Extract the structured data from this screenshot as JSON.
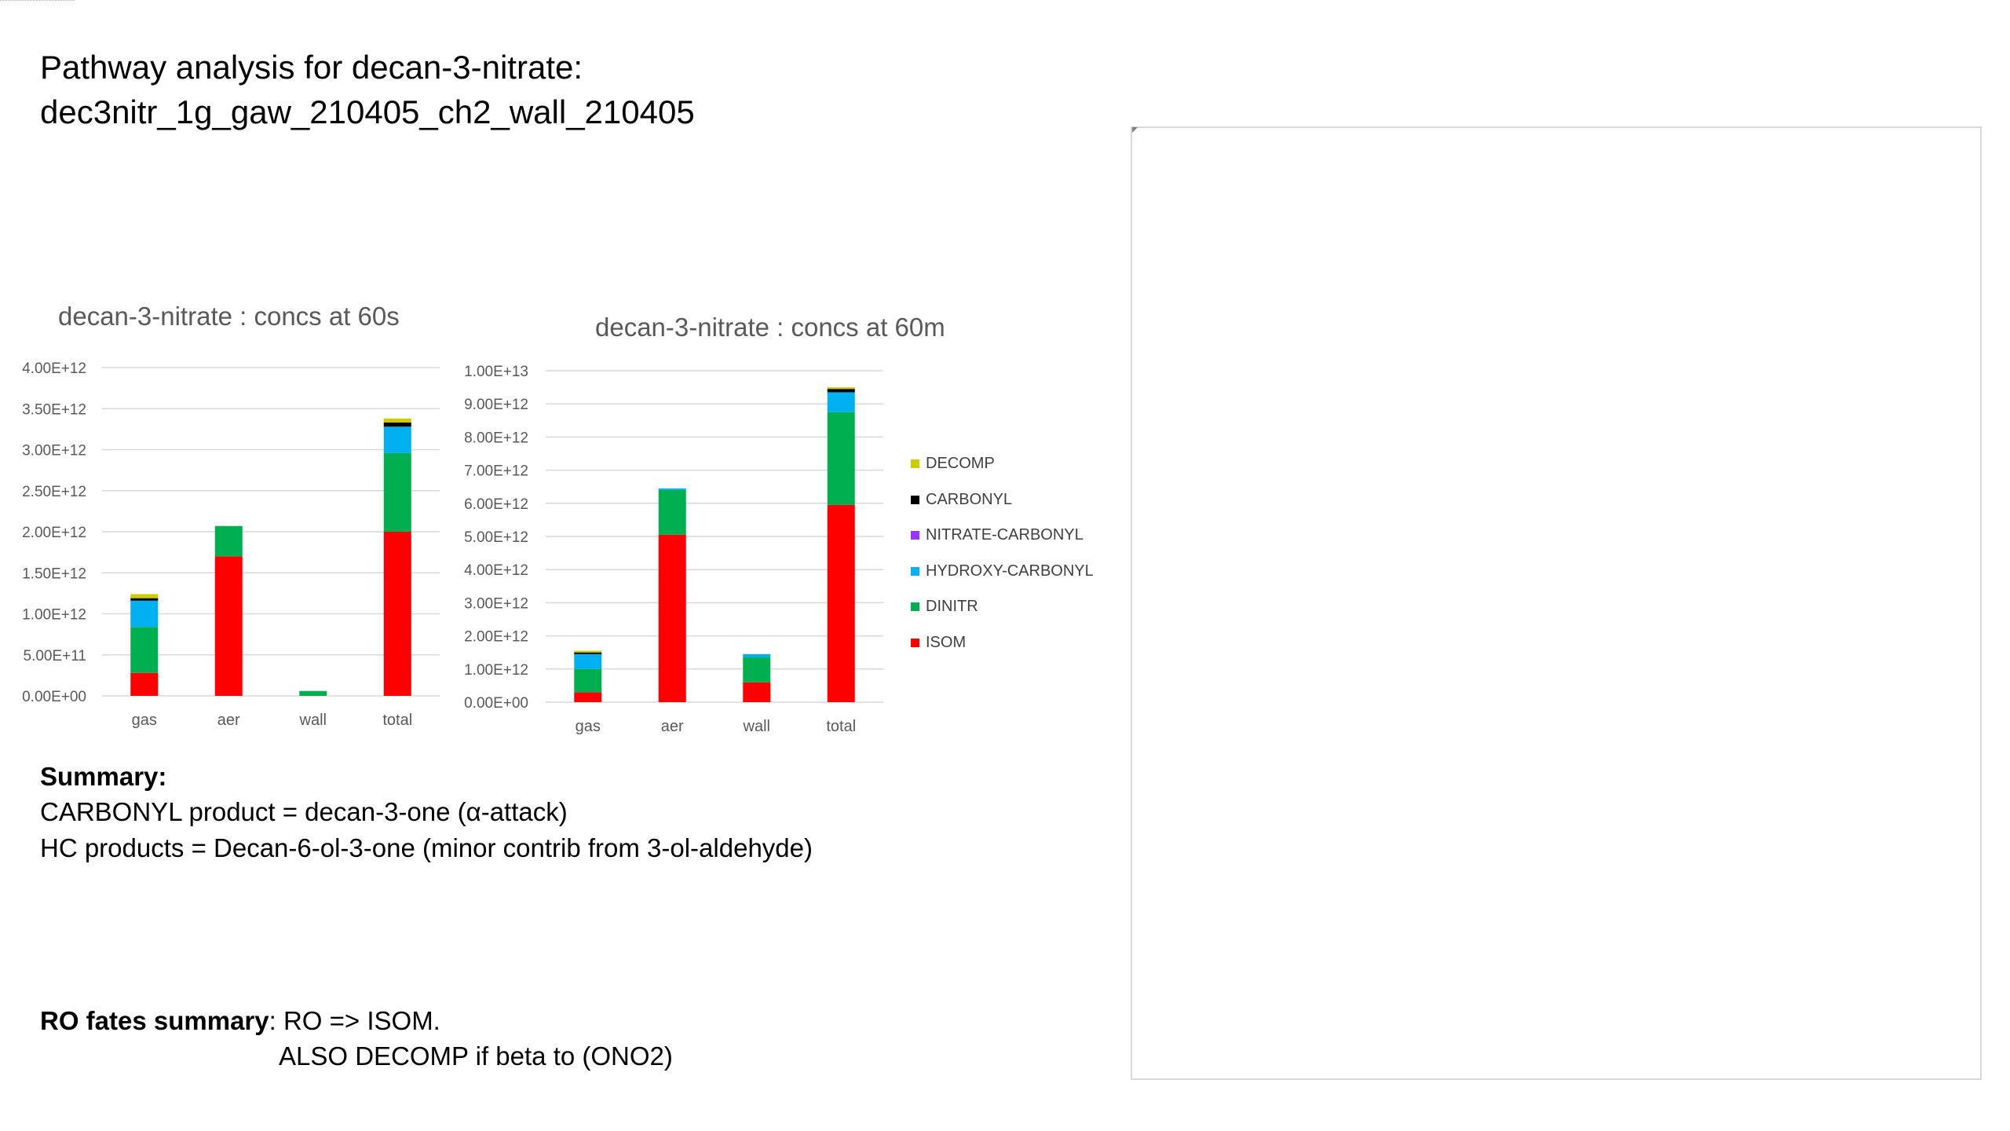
{
  "header": {
    "title_line1": "Pathway analysis for decan-3-nitrate:",
    "title_line2": "dec3nitr_1g_gaw_210405_ch2_wall_210405"
  },
  "chart_data": [
    {
      "type": "bar",
      "stacked": true,
      "title": "decan-3-nitrate : concs at 60s",
      "categories": [
        "gas",
        "aer",
        "wall",
        "total"
      ],
      "y_ticks": [
        "0.00E+00",
        "5.00E+11",
        "1.00E+12",
        "1.50E+12",
        "2.00E+12",
        "2.50E+12",
        "3.00E+12",
        "3.50E+12",
        "4.00E+12"
      ],
      "ylim": [
        0,
        4000000000000.0
      ],
      "grid": true,
      "series": [
        {
          "name": "ISOM",
          "color": "#ff0000",
          "values": [
            280000000000.0,
            1700000000000.0,
            0,
            2000000000000.0
          ]
        },
        {
          "name": "DINITR",
          "color": "#00b050",
          "values": [
            560000000000.0,
            370000000000.0,
            60000000000.0,
            960000000000.0
          ]
        },
        {
          "name": "HYDROXY-CARBONYL",
          "color": "#00b0f0",
          "values": [
            320000000000.0,
            0,
            0,
            320000000000.0
          ]
        },
        {
          "name": "NITRATE-CARBONYL",
          "color": "#9933ff",
          "values": [
            0,
            0,
            0,
            0
          ]
        },
        {
          "name": "CARBONYL",
          "color": "#000000",
          "values": [
            30000000000.0,
            0,
            0,
            50000000000.0
          ]
        },
        {
          "name": "DECOMP",
          "color": "#cccc00",
          "values": [
            50000000000.0,
            0,
            0,
            50000000000.0
          ]
        }
      ]
    },
    {
      "type": "bar",
      "stacked": true,
      "title": "decan-3-nitrate : concs at 60m",
      "categories": [
        "gas",
        "aer",
        "wall",
        "total"
      ],
      "y_ticks": [
        "0.00E+00",
        "1.00E+12",
        "2.00E+12",
        "3.00E+12",
        "4.00E+12",
        "5.00E+12",
        "6.00E+12",
        "7.00E+12",
        "8.00E+12",
        "9.00E+12",
        "1.00E+13"
      ],
      "ylim": [
        0,
        10000000000000.0
      ],
      "grid": true,
      "legend_position": "right",
      "series": [
        {
          "name": "ISOM",
          "color": "#ff0000",
          "values": [
            300000000000.0,
            5050000000000.0,
            600000000000.0,
            5950000000000.0
          ]
        },
        {
          "name": "DINITR",
          "color": "#00b050",
          "values": [
            700000000000.0,
            1350000000000.0,
            750000000000.0,
            2800000000000.0
          ]
        },
        {
          "name": "HYDROXY-CARBONYL",
          "color": "#00b0f0",
          "values": [
            450000000000.0,
            50000000000.0,
            100000000000.0,
            600000000000.0
          ]
        },
        {
          "name": "NITRATE-CARBONYL",
          "color": "#9933ff",
          "values": [
            0,
            0,
            0,
            0
          ]
        },
        {
          "name": "CARBONYL",
          "color": "#000000",
          "values": [
            50000000000.0,
            0,
            0,
            100000000000.0
          ]
        },
        {
          "name": "DECOMP",
          "color": "#cccc00",
          "values": [
            50000000000.0,
            0,
            0,
            50000000000.0
          ]
        }
      ]
    }
  ],
  "legend": [
    {
      "label": "DECOMP",
      "color": "#cccc00"
    },
    {
      "label": "CARBONYL",
      "color": "#000000"
    },
    {
      "label": "NITRATE-CARBONYL",
      "color": "#9933ff"
    },
    {
      "label": "HYDROXY-CARBONYL",
      "color": "#00b0f0"
    },
    {
      "label": "DINITR",
      "color": "#00b050"
    },
    {
      "label": "ISOM",
      "color": "#ff0000"
    }
  ],
  "summary": {
    "heading": "Summary:",
    "line1": "CARBONYL product = decan-3-one (α-attack)",
    "line2": "HC products = Decan-6-ol-3-one (minor contrib from 3-ol-aldehyde)"
  },
  "ro_fates": {
    "label": "RO fates summary",
    "line1": ": RO => ISOM.",
    "line2": "ALSO DECOMP if beta to (ONO2)"
  }
}
